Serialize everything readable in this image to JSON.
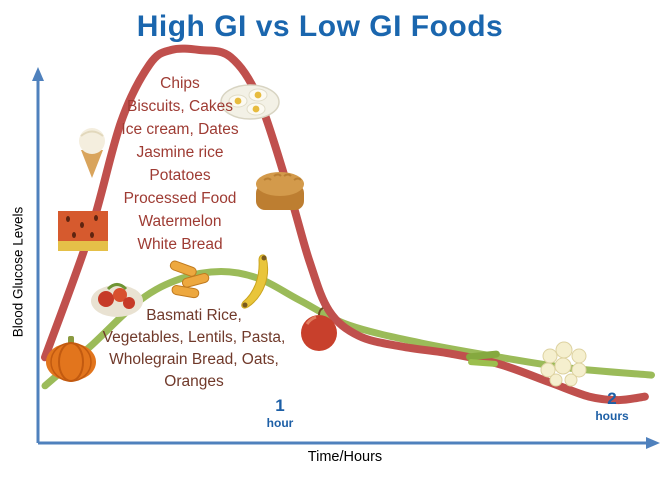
{
  "title": "High GI vs Low GI Foods",
  "y_axis_label": "Blood Glucose Levels",
  "x_axis_label": "Time/Hours",
  "high_gi_list": [
    "Chips",
    "Biscuits, Cakes",
    "Ice cream, Dates",
    "Jasmine rice",
    "Potatoes",
    "Processed Food",
    "Watermelon",
    "White Bread"
  ],
  "low_gi_list": [
    "Basmati Rice,",
    "Vegetables, Lentils, Pasta,",
    "Wholegrain Bread, Oats,",
    "Oranges"
  ],
  "ticks": {
    "hour1_num": "1",
    "hour1_unit": "hour",
    "hour2_num": "2",
    "hour2_unit": "hours"
  },
  "colors": {
    "title_blue": "#1a66ae",
    "axis_blue": "#4f81bd",
    "high_gi_curve_red": "#c0504d",
    "low_gi_curve_green": "#9bbb59",
    "high_gi_text": "#9e3b33",
    "low_gi_text": "#70392a",
    "tick_text_blue": "#1d5fa6"
  },
  "food_images": [
    "pumpkin",
    "vegetable plate",
    "penne pasta",
    "banana",
    "apple",
    "watermelon flesh",
    "ice cream cone",
    "deviled eggs plate",
    "bread loaf",
    "rice cluster",
    "green beans"
  ],
  "chart_data": {
    "type": "line",
    "title": "High GI vs Low GI Foods",
    "xlabel": "Time/Hours",
    "ylabel": "Blood Glucose Levels",
    "xlim": [
      0,
      2.15
    ],
    "ylim": [
      0,
      115
    ],
    "grid": false,
    "legend_position": "none",
    "x_ticks": [
      {
        "x": 1,
        "label": "1 hour"
      },
      {
        "x": 2,
        "label": "2 hours"
      }
    ],
    "series": [
      {
        "name": "High GI Foods",
        "color": "#c0504d",
        "foods": [
          "Chips",
          "Biscuits",
          "Cakes",
          "Ice cream",
          "Dates",
          "Jasmine rice",
          "Potatoes",
          "Processed Food",
          "Watermelon",
          "White Bread"
        ],
        "x": [
          0,
          0.19,
          0.32,
          0.44,
          0.53,
          0.65,
          0.78,
          0.9,
          1.02,
          1.08,
          1.14,
          1.23,
          1.36,
          1.51,
          1.66,
          1.81,
          1.93,
          2.02,
          2.1
        ],
        "y": [
          24,
          59,
          90,
          106,
          110,
          110,
          108,
          96,
          70,
          51,
          37,
          30,
          27,
          25,
          22,
          17,
          13,
          12,
          13
        ]
      },
      {
        "name": "Low GI Foods",
        "color": "#9bbb59",
        "foods": [
          "Basmati Rice",
          "Vegetables",
          "Lentils",
          "Pasta",
          "Wholegrain Bread",
          "Oats",
          "Oranges"
        ],
        "x": [
          0,
          0.19,
          0.4,
          0.57,
          0.74,
          0.9,
          1.05,
          1.2,
          1.42,
          1.66,
          1.87,
          2.12
        ],
        "y": [
          16,
          27,
          40,
          46,
          48,
          46,
          40,
          33,
          28,
          24,
          21,
          19
        ]
      }
    ]
  }
}
